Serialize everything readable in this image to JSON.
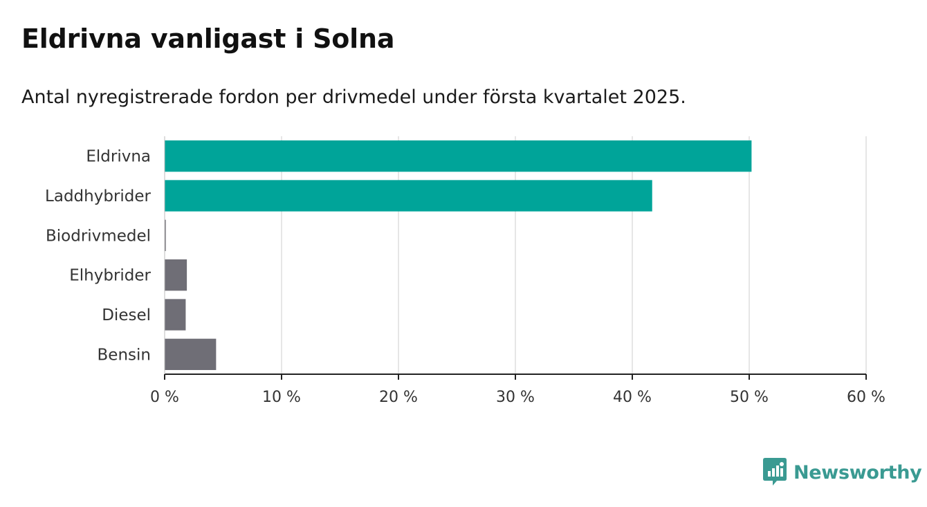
{
  "header": {
    "title": "Eldrivna vanligast i Solna",
    "subtitle": "Antal nyregistrerade fordon per drivmedel under första kvartalet 2025."
  },
  "colors": {
    "highlight": "#00a499",
    "default": "#6f6e76",
    "grid": "#dddddd",
    "axis": "#222222",
    "brand": "#3a9a92"
  },
  "chart_data": {
    "type": "bar",
    "orientation": "horizontal",
    "categories": [
      "Eldrivna",
      "Laddhybrider",
      "Biodrivmedel",
      "Elhybrider",
      "Diesel",
      "Bensin"
    ],
    "values": [
      50.2,
      41.7,
      0.1,
      1.9,
      1.8,
      4.4
    ],
    "highlighted": [
      true,
      true,
      false,
      false,
      false,
      false
    ],
    "xlim": [
      0,
      60
    ],
    "xticks": [
      0,
      10,
      20,
      30,
      40,
      50,
      60
    ],
    "xtick_labels": [
      "0 %",
      "10 %",
      "20 %",
      "30 %",
      "40 %",
      "50 %",
      "60 %"
    ],
    "grid": true
  },
  "brand": {
    "name": "Newsworthy",
    "icon": "newsworthy-logo-icon"
  }
}
